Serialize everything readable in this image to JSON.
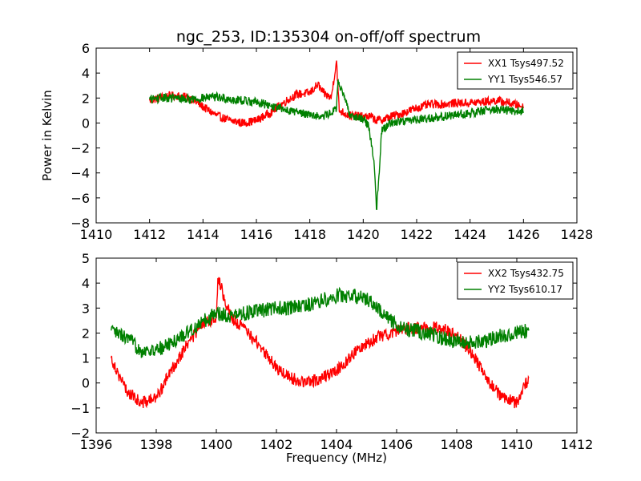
{
  "title": "ngc_253, ID:135304 on-off/off spectrum",
  "chart_data": [
    {
      "type": "line",
      "title": "ngc_253, ID:135304 on-off/off spectrum",
      "xlabel": "",
      "ylabel": "Power in Kelvin",
      "xlim": [
        1410,
        1428
      ],
      "ylim": [
        -8,
        6
      ],
      "xticks": [
        1410,
        1412,
        1414,
        1416,
        1418,
        1420,
        1422,
        1424,
        1426,
        1428
      ],
      "yticks": [
        -8,
        -6,
        -4,
        -2,
        0,
        2,
        4,
        6
      ],
      "grid": false,
      "legend_position": "top-right",
      "series": [
        {
          "name": "XX1 Tsys497.52",
          "color": "#ff0000",
          "x": [
            1412.0,
            1412.5,
            1413.0,
            1413.5,
            1414.0,
            1414.5,
            1415.0,
            1415.5,
            1416.0,
            1416.5,
            1417.0,
            1417.5,
            1418.0,
            1418.3,
            1418.5,
            1418.8,
            1419.0,
            1419.1,
            1419.5,
            1420.0,
            1420.3,
            1420.5,
            1420.8,
            1421.0,
            1421.5,
            1422.0,
            1422.5,
            1423.0,
            1423.5,
            1424.0,
            1424.5,
            1425.0,
            1425.5,
            1426.0
          ],
          "y": [
            1.8,
            2.1,
            2.2,
            2.0,
            1.3,
            0.6,
            0.2,
            0.0,
            0.2,
            0.8,
            1.6,
            2.3,
            2.4,
            3.1,
            2.4,
            2.0,
            5.0,
            1.0,
            0.6,
            0.5,
            0.5,
            0.2,
            0.3,
            0.5,
            0.8,
            1.2,
            1.5,
            1.5,
            1.6,
            1.6,
            1.7,
            1.8,
            1.6,
            1.3
          ],
          "noise": 0.35
        },
        {
          "name": "YY1 Tsys546.57",
          "color": "#008000",
          "x": [
            1412.0,
            1412.5,
            1413.0,
            1413.5,
            1414.0,
            1414.5,
            1415.0,
            1415.5,
            1416.0,
            1416.5,
            1417.0,
            1417.5,
            1418.0,
            1418.5,
            1419.0,
            1419.05,
            1419.5,
            1420.0,
            1420.2,
            1420.4,
            1420.5,
            1420.7,
            1421.0,
            1421.5,
            1422.0,
            1422.5,
            1423.0,
            1423.5,
            1424.0,
            1424.5,
            1425.0,
            1425.5,
            1426.0
          ],
          "y": [
            1.9,
            2.0,
            2.0,
            1.9,
            2.0,
            2.1,
            1.9,
            1.8,
            1.7,
            1.4,
            1.1,
            0.9,
            0.7,
            0.5,
            1.1,
            3.4,
            0.7,
            0.3,
            -0.2,
            -3.0,
            -6.9,
            -0.5,
            0.0,
            0.2,
            0.3,
            0.4,
            0.5,
            0.7,
            0.8,
            1.0,
            1.1,
            1.0,
            0.9
          ],
          "noise": 0.35
        }
      ]
    },
    {
      "type": "line",
      "title": "",
      "xlabel": "Frequency (MHz)",
      "ylabel": "",
      "xlim": [
        1396,
        1412
      ],
      "ylim": [
        -2,
        5
      ],
      "xticks": [
        1396,
        1398,
        1400,
        1402,
        1404,
        1406,
        1408,
        1410,
        1412
      ],
      "yticks": [
        -2,
        -1,
        0,
        1,
        2,
        3,
        4,
        5
      ],
      "grid": false,
      "legend_position": "top-right",
      "series": [
        {
          "name": "XX2 Tsys432.75",
          "color": "#ff0000",
          "x": [
            1396.5,
            1397.0,
            1397.5,
            1398.0,
            1398.5,
            1399.0,
            1399.5,
            1400.0,
            1400.05,
            1400.5,
            1401.0,
            1401.5,
            1402.0,
            1402.5,
            1403.0,
            1403.5,
            1404.0,
            1404.5,
            1405.0,
            1405.5,
            1406.0,
            1406.5,
            1407.0,
            1407.5,
            1408.0,
            1408.5,
            1409.0,
            1409.5,
            1410.0,
            1410.4
          ],
          "y": [
            1.0,
            -0.3,
            -0.8,
            -0.6,
            0.5,
            1.5,
            2.3,
            2.6,
            4.2,
            2.6,
            2.1,
            1.4,
            0.6,
            0.2,
            0.0,
            0.2,
            0.5,
            1.1,
            1.6,
            1.9,
            2.1,
            2.2,
            2.2,
            2.2,
            1.9,
            1.2,
            0.2,
            -0.6,
            -0.8,
            0.2
          ],
          "noise": 0.25
        },
        {
          "name": "YY2 Tsys610.17",
          "color": "#008000",
          "x": [
            1396.5,
            1397.0,
            1397.5,
            1398.0,
            1398.5,
            1399.0,
            1399.5,
            1400.0,
            1400.5,
            1401.0,
            1401.5,
            1402.0,
            1402.5,
            1403.0,
            1403.5,
            1404.0,
            1404.5,
            1405.0,
            1405.5,
            1406.0,
            1406.5,
            1407.0,
            1407.5,
            1408.0,
            1408.5,
            1409.0,
            1409.5,
            1410.0,
            1410.4
          ],
          "y": [
            2.1,
            1.8,
            1.3,
            1.3,
            1.6,
            2.0,
            2.4,
            2.8,
            2.7,
            2.8,
            2.9,
            3.0,
            3.0,
            3.1,
            3.3,
            3.5,
            3.5,
            3.4,
            2.8,
            2.3,
            2.1,
            2.0,
            1.8,
            1.7,
            1.6,
            1.7,
            1.9,
            2.0,
            2.1
          ],
          "noise": 0.3
        }
      ]
    }
  ]
}
